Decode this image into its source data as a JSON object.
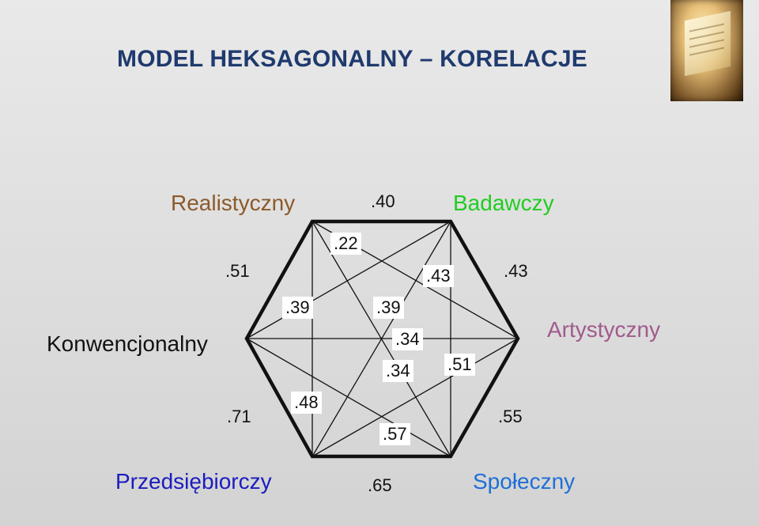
{
  "title": "MODEL HEKSAGONALNY – KORELACJE",
  "types": {
    "realistic": {
      "text": "Realistyczny",
      "color": "#8b5a2b"
    },
    "investigative": {
      "text": "Badawczy",
      "color": "#22cc22"
    },
    "artistic": {
      "text": "Artystyczny",
      "color": "#a05a8c"
    },
    "social": {
      "text": "Społeczny",
      "color": "#1f6fd6"
    },
    "enterprising": {
      "text": "Przedsiębiorczy",
      "color": "#1c1cc0"
    },
    "conventional": {
      "text": "Konwencjonalny",
      "color": "#111111"
    }
  },
  "correlations": {
    "r_i": ".40",
    "i_a": ".43",
    "a_s": ".55",
    "s_e": ".65",
    "e_c": ".71",
    "c_r": ".51",
    "r_a": ".22",
    "i_s": ".43",
    "r_s": ".39",
    "c_a": ".34",
    "e_i": ".34",
    "c_i": ".51",
    "r_e": ".39",
    "c_s": ".48",
    "e_a": ".57"
  },
  "colors": {
    "title": "#1f3a6e",
    "hexagon": "#111111"
  },
  "decor": {
    "photo_icon": "book-photo-icon"
  }
}
